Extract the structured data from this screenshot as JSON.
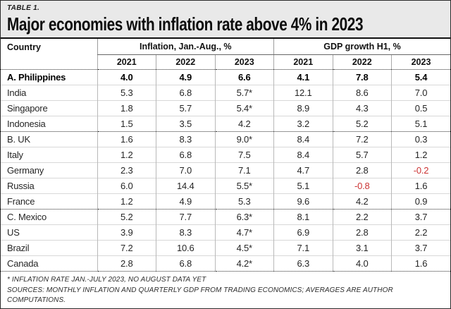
{
  "header": {
    "table_label": "TABLE 1.",
    "title": "Major economies with inflation rate above 4% in 2023"
  },
  "chart_data": {
    "type": "table",
    "title": "Major economies with inflation rate above 4% in 2023",
    "country_header": "Country",
    "column_groups": [
      {
        "label": "Inflation, Jan.-Aug., %",
        "years": [
          "2021",
          "2022",
          "2023"
        ]
      },
      {
        "label": "GDP growth H1, %",
        "years": [
          "2021",
          "2022",
          "2023"
        ]
      }
    ],
    "rows": [
      {
        "country": "A. Philippines",
        "bold": true,
        "group_start": true,
        "values": [
          "4.0",
          "4.9",
          "6.6",
          "4.1",
          "7.8",
          "5.4"
        ]
      },
      {
        "country": "India",
        "bold": false,
        "group_start": false,
        "values": [
          "5.3",
          "6.8",
          "5.7*",
          "12.1",
          "8.6",
          "7.0"
        ]
      },
      {
        "country": "Singapore",
        "bold": false,
        "group_start": false,
        "values": [
          "1.8",
          "5.7",
          "5.4*",
          "8.9",
          "4.3",
          "0.5"
        ]
      },
      {
        "country": "Indonesia",
        "bold": false,
        "group_start": false,
        "values": [
          "1.5",
          "3.5",
          "4.2",
          "3.2",
          "5.2",
          "5.1"
        ]
      },
      {
        "country": "B. UK",
        "bold": false,
        "group_start": true,
        "values": [
          "1.6",
          "8.3",
          "9.0*",
          "8.4",
          "7.2",
          "0.3"
        ]
      },
      {
        "country": "Italy",
        "bold": false,
        "group_start": false,
        "values": [
          "1.2",
          "6.8",
          "7.5",
          "8.4",
          "5.7",
          "1.2"
        ]
      },
      {
        "country": "Germany",
        "bold": false,
        "group_start": false,
        "values": [
          "2.3",
          "7.0",
          "7.1",
          "4.7",
          "2.8",
          "-0.2"
        ]
      },
      {
        "country": "Russia",
        "bold": false,
        "group_start": false,
        "values": [
          "6.0",
          "14.4",
          "5.5*",
          "5.1",
          "-0.8",
          "1.6"
        ]
      },
      {
        "country": "France",
        "bold": false,
        "group_start": false,
        "values": [
          "1.2",
          "4.9",
          "5.3",
          "9.6",
          "4.2",
          "0.9"
        ]
      },
      {
        "country": "C. Mexico",
        "bold": false,
        "group_start": true,
        "values": [
          "5.2",
          "7.7",
          "6.3*",
          "8.1",
          "2.2",
          "3.7"
        ]
      },
      {
        "country": "US",
        "bold": false,
        "group_start": false,
        "values": [
          "3.9",
          "8.3",
          "4.7*",
          "6.9",
          "2.8",
          "2.2"
        ]
      },
      {
        "country": "Brazil",
        "bold": false,
        "group_start": false,
        "values": [
          "7.2",
          "10.6",
          "4.5*",
          "7.1",
          "3.1",
          "3.7"
        ]
      },
      {
        "country": "Canada",
        "bold": false,
        "group_start": false,
        "values": [
          "2.8",
          "6.8",
          "4.2*",
          "6.3",
          "4.0",
          "1.6"
        ]
      }
    ]
  },
  "footnotes": {
    "note": "* INFLATION RATE JAN.-JULY 2023, NO AUGUST DATA YET",
    "sources": "SOURCES: MONTHLY INFLATION AND QUARTERLY GDP FROM TRADING ECONOMICS; AVERAGES ARE AUTHOR COMPUTATIONS."
  },
  "colors": {
    "negative_value": "#cc3333",
    "background": "#e9e9e9",
    "text": "#111111"
  }
}
